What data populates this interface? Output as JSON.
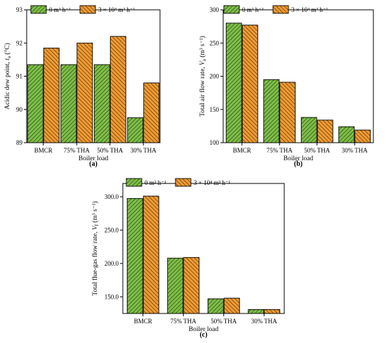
{
  "legend": {
    "s1": "0 m³ h⁻¹",
    "s2": "3 × 10⁴ m³ h⁻¹"
  },
  "colors": {
    "s1_fill": "#7CC043",
    "s2_fill": "#F39A2E",
    "hatch": "#222222"
  },
  "chart_data": [
    {
      "id": "a",
      "type": "bar",
      "panel_label": "(a)",
      "xlabel": "Boiler load",
      "ylabel_main": "Acidic dew point, ",
      "ylabel_sym": "t",
      "ylabel_sub": "a",
      "ylabel_unit": " (°C)",
      "categories": [
        "BMCR",
        "75% THA",
        "50% THA",
        "30% THA"
      ],
      "series": [
        {
          "name": "0 m³ h⁻¹",
          "values": [
            91.35,
            91.35,
            91.35,
            89.75
          ]
        },
        {
          "name": "3 × 10⁴ m³ h⁻¹",
          "values": [
            91.85,
            92.0,
            92.2,
            90.8
          ]
        }
      ],
      "ylim": [
        89,
        93
      ],
      "yticks": [
        89,
        90,
        91,
        92,
        93
      ],
      "yticklabels": [
        "89",
        "90",
        "91",
        "92",
        "93"
      ],
      "legend_position": "top-left"
    },
    {
      "id": "b",
      "type": "bar",
      "panel_label": "(b)",
      "xlabel": "Boiler load",
      "ylabel_main": "Total air flow rate, ",
      "ylabel_sym": "V",
      "ylabel_sub": "a",
      "ylabel_unit": " (m³ s⁻¹)",
      "categories": [
        "BMCR",
        "75% THA",
        "50% THA",
        "30% THA"
      ],
      "series": [
        {
          "name": "0 m³ h⁻¹",
          "values": [
            280,
            195,
            138,
            124
          ]
        },
        {
          "name": "3 × 10⁴ m³ h⁻¹",
          "values": [
            277,
            191,
            134,
            119
          ]
        }
      ],
      "ylim": [
        100,
        300
      ],
      "yticks": [
        100,
        150,
        200,
        250,
        300
      ],
      "yticklabels": [
        "100",
        "150",
        "200",
        "250",
        "300"
      ],
      "legend_position": "top-left"
    },
    {
      "id": "c",
      "type": "bar",
      "panel_label": "(c)",
      "xlabel": "Boiler load",
      "ylabel_main": "Total flue-gas flow rate, ",
      "ylabel_sym": "V",
      "ylabel_sub": "f",
      "ylabel_unit": " (m³ s⁻¹)",
      "categories": [
        "BMCR",
        "75% THA",
        "50% THA",
        "30% THA"
      ],
      "series": [
        {
          "name": "0 m³ h⁻¹",
          "values": [
            297.5,
            208,
            147,
            131
          ]
        },
        {
          "name": "3 × 10⁴ m³ h⁻¹",
          "values": [
            301,
            209,
            148,
            131
          ]
        }
      ],
      "ylim": [
        125,
        320
      ],
      "yticks": [
        150,
        200,
        250,
        300
      ],
      "yticklabels": [
        "150.0",
        "200.0",
        "250.0",
        "300.0"
      ],
      "legend_position": "top-center"
    }
  ]
}
